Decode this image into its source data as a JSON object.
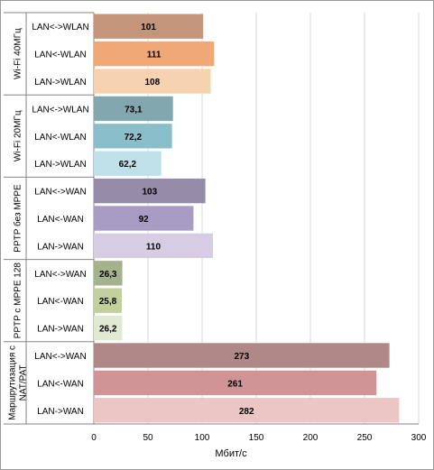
{
  "chart_data": {
    "type": "bar",
    "orientation": "horizontal",
    "xlabel": "Мбит/с",
    "xlim": [
      0,
      300
    ],
    "xticks": [
      0,
      50,
      100,
      150,
      200,
      250,
      300
    ],
    "grid": true,
    "groups": [
      {
        "name": "Wi-Fi 40МГц",
        "bars": [
          {
            "category": "LAN<->WLAN",
            "value": 101,
            "label": "101",
            "color": "#c4957b"
          },
          {
            "category": "LAN<-WLAN",
            "value": 111,
            "label": "111",
            "color": "#f0a876"
          },
          {
            "category": "LAN->WLAN",
            "value": 108,
            "label": "108",
            "color": "#f7d2b0"
          }
        ]
      },
      {
        "name": "Wi-Fi 20МГц",
        "bars": [
          {
            "category": "LAN<->WLAN",
            "value": 73.1,
            "label": "73,1",
            "color": "#83a7ae"
          },
          {
            "category": "LAN<-WLAN",
            "value": 72.2,
            "label": "72,2",
            "color": "#8bbecb"
          },
          {
            "category": "LAN->WLAN",
            "value": 62.2,
            "label": "62,2",
            "color": "#bfe0e8"
          }
        ]
      },
      {
        "name": "PPTP без MPPE",
        "bars": [
          {
            "category": "LAN<->WAN",
            "value": 103,
            "label": "103",
            "color": "#958ca9"
          },
          {
            "category": "LAN<-WAN",
            "value": 92,
            "label": "92",
            "color": "#a89bc4"
          },
          {
            "category": "LAN->WAN",
            "value": 110,
            "label": "110",
            "color": "#d6cde5"
          }
        ]
      },
      {
        "name": "PPTP с MPPE 128",
        "bars": [
          {
            "category": "LAN<->WAN",
            "value": 26.3,
            "label": "26,3",
            "color": "#a5b38c"
          },
          {
            "category": "LAN<-WAN",
            "value": 25.8,
            "label": "25,8",
            "color": "#c2d09e"
          },
          {
            "category": "LAN->WAN",
            "value": 26.2,
            "label": "26,2",
            "color": "#e1ead0"
          }
        ]
      },
      {
        "name": "Маршрутизация с NAT/PAT",
        "name_lines": [
          "Маршрутизация с",
          "NAT/PAT"
        ],
        "bars": [
          {
            "category": "LAN<->WAN",
            "value": 273,
            "label": "273",
            "color": "#b08888"
          },
          {
            "category": "LAN<-WAN",
            "value": 261,
            "label": "261",
            "color": "#d09496"
          },
          {
            "category": "LAN->WAN",
            "value": 282,
            "label": "282",
            "color": "#ecc5c5"
          }
        ]
      }
    ]
  }
}
